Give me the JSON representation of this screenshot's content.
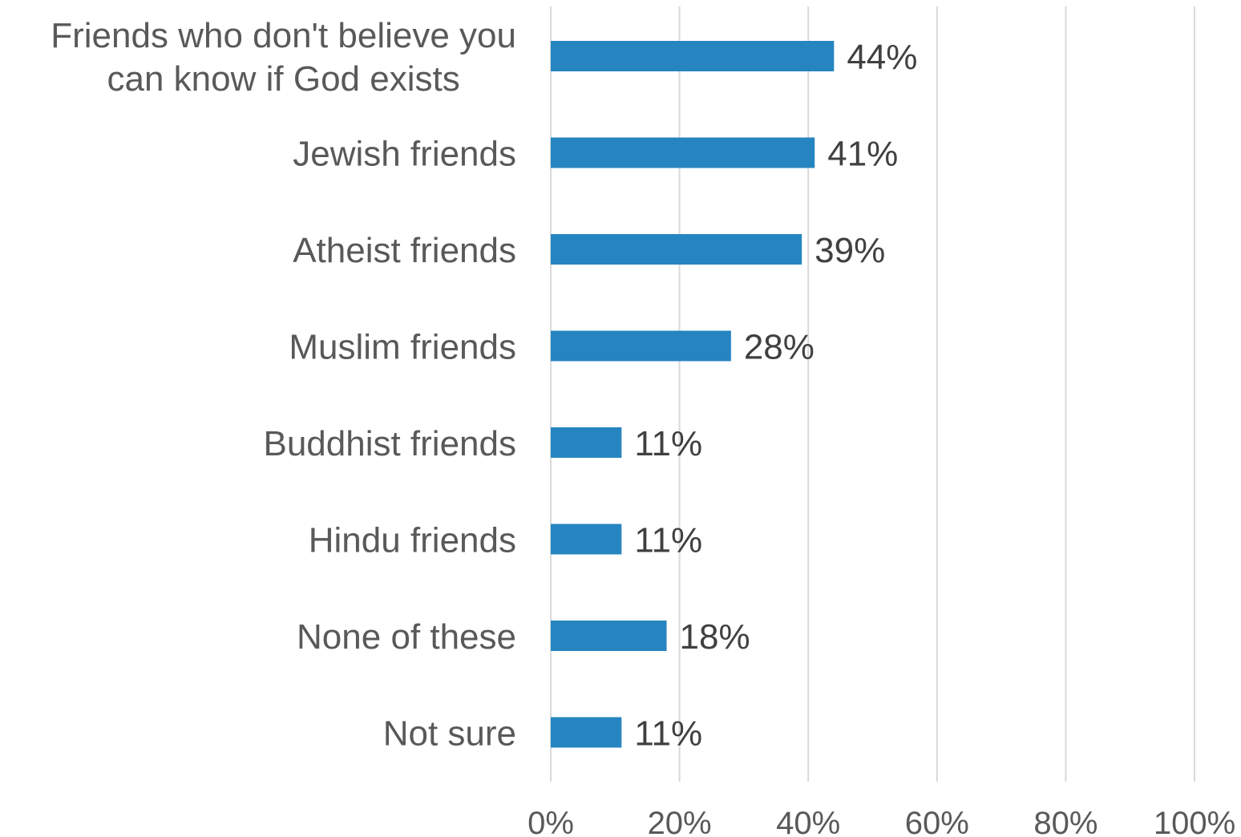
{
  "chart_data": {
    "type": "bar",
    "orientation": "horizontal",
    "categories": [
      "Friends who don't believe you can know if God exists",
      "Jewish friends",
      "Atheist friends",
      "Muslim friends",
      "Buddhist friends",
      "Hindu friends",
      "None of these",
      "Not sure"
    ],
    "category_lines": [
      [
        "Friends who don't believe you",
        "can know if God exists"
      ],
      [
        "Jewish friends"
      ],
      [
        "Atheist friends"
      ],
      [
        "Muslim friends"
      ],
      [
        "Buddhist friends"
      ],
      [
        "Hindu friends"
      ],
      [
        "None of these"
      ],
      [
        "Not sure"
      ]
    ],
    "values": [
      44,
      41,
      39,
      28,
      11,
      11,
      18,
      11
    ],
    "value_labels": [
      "44%",
      "41%",
      "39%",
      "28%",
      "11%",
      "11%",
      "18%",
      "11%"
    ],
    "xlim": [
      0,
      100
    ],
    "x_ticks": [
      0,
      20,
      40,
      60,
      80,
      100
    ],
    "x_tick_labels": [
      "0%",
      "20%",
      "40%",
      "60%",
      "80%",
      "100%"
    ],
    "grid": true,
    "legend": "none",
    "colors": {
      "bar": "#2685C1",
      "gridline": "#D9D9D9",
      "category_text": "#595959",
      "value_text": "#404040"
    }
  }
}
